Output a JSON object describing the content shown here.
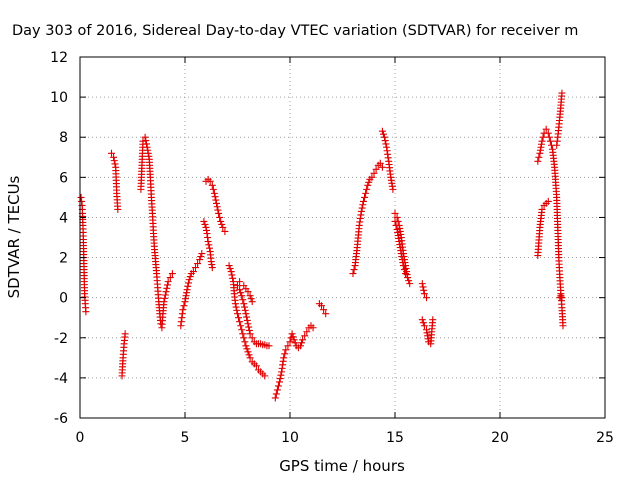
{
  "chart_data": {
    "type": "scatter",
    "title": "Day 303 of 2016, Sidereal Day-to-day VTEC variation (SDTVAR) for receiver m",
    "xlabel": "GPS time / hours",
    "ylabel": "SDTVAR / TECUs",
    "xlim": [
      0,
      25
    ],
    "ylim": [
      -6,
      12
    ],
    "xticks": [
      0,
      5,
      10,
      15,
      20,
      25
    ],
    "yticks": [
      -6,
      -4,
      -2,
      0,
      2,
      4,
      6,
      8,
      10,
      12
    ],
    "grid": true,
    "marker": "+",
    "marker_color": "#e00000",
    "series": [
      {
        "name": "SDTVAR",
        "segments": [
          [
            [
              0.05,
              5.0
            ],
            [
              0.1,
              4.6
            ],
            [
              0.12,
              4.2
            ],
            [
              0.14,
              3.6
            ],
            [
              0.16,
              2.9
            ],
            [
              0.18,
              2.0
            ],
            [
              0.2,
              1.1
            ],
            [
              0.22,
              0.2
            ],
            [
              0.25,
              -0.3
            ],
            [
              0.28,
              -0.7
            ]
          ],
          [
            [
              1.5,
              7.2
            ],
            [
              1.6,
              7.0
            ],
            [
              1.7,
              6.5
            ],
            [
              1.75,
              5.2
            ],
            [
              1.8,
              4.4
            ]
          ],
          [
            [
              2.0,
              -3.9
            ],
            [
              2.05,
              -3.0
            ],
            [
              2.1,
              -2.3
            ],
            [
              2.15,
              -1.8
            ]
          ],
          [
            [
              2.9,
              5.4
            ],
            [
              3.0,
              7.8
            ],
            [
              3.1,
              8.0
            ],
            [
              3.2,
              7.5
            ],
            [
              3.3,
              6.9
            ],
            [
              3.35,
              6.0
            ],
            [
              3.4,
              5.0
            ],
            [
              3.45,
              4.2
            ],
            [
              3.5,
              3.2
            ],
            [
              3.55,
              2.4
            ],
            [
              3.6,
              1.8
            ],
            [
              3.65,
              1.2
            ],
            [
              3.7,
              0.5
            ],
            [
              3.75,
              -0.2
            ],
            [
              3.8,
              -0.8
            ],
            [
              3.85,
              -1.3
            ],
            [
              3.9,
              -1.5
            ],
            [
              3.95,
              -0.8
            ],
            [
              4.0,
              -0.2
            ],
            [
              4.1,
              0.3
            ],
            [
              4.2,
              0.8
            ],
            [
              4.3,
              1.0
            ],
            [
              4.4,
              1.2
            ]
          ],
          [
            [
              4.8,
              -1.4
            ],
            [
              4.85,
              -1.0
            ],
            [
              4.9,
              -0.6
            ],
            [
              5.0,
              -0.2
            ],
            [
              5.1,
              0.4
            ],
            [
              5.2,
              0.9
            ],
            [
              5.3,
              1.2
            ],
            [
              5.4,
              1.3
            ],
            [
              5.5,
              1.5
            ],
            [
              5.6,
              1.7
            ],
            [
              5.7,
              1.9
            ],
            [
              5.8,
              2.2
            ]
          ],
          [
            [
              5.9,
              3.8
            ],
            [
              6.0,
              3.5
            ],
            [
              6.05,
              3.2
            ],
            [
              6.1,
              2.8
            ],
            [
              6.2,
              2.3
            ],
            [
              6.25,
              1.8
            ],
            [
              6.3,
              1.5
            ]
          ],
          [
            [
              6.0,
              5.8
            ],
            [
              6.1,
              5.9
            ],
            [
              6.2,
              5.8
            ],
            [
              6.3,
              5.6
            ],
            [
              6.4,
              5.2
            ],
            [
              6.5,
              4.7
            ],
            [
              6.6,
              4.2
            ],
            [
              6.7,
              3.8
            ],
            [
              6.8,
              3.5
            ],
            [
              6.9,
              3.3
            ]
          ],
          [
            [
              7.1,
              1.6
            ],
            [
              7.2,
              1.3
            ],
            [
              7.3,
              0.8
            ],
            [
              7.35,
              0.2
            ],
            [
              7.4,
              -0.3
            ],
            [
              7.5,
              -0.8
            ],
            [
              7.6,
              -1.2
            ],
            [
              7.7,
              -1.6
            ],
            [
              7.8,
              -2.0
            ],
            [
              7.9,
              -2.4
            ],
            [
              8.0,
              -2.7
            ],
            [
              8.1,
              -3.0
            ],
            [
              8.2,
              -3.2
            ],
            [
              8.3,
              -3.3
            ],
            [
              8.4,
              -3.4
            ],
            [
              8.5,
              -3.6
            ],
            [
              8.6,
              -3.7
            ],
            [
              8.7,
              -3.8
            ],
            [
              8.8,
              -3.9
            ]
          ],
          [
            [
              7.5,
              0.6
            ],
            [
              7.6,
              0.4
            ],
            [
              7.7,
              0.1
            ],
            [
              7.8,
              -0.3
            ],
            [
              7.9,
              -0.8
            ],
            [
              8.0,
              -1.3
            ],
            [
              8.1,
              -1.8
            ],
            [
              8.2,
              -2.0
            ],
            [
              8.3,
              -2.2
            ],
            [
              8.4,
              -2.3
            ],
            [
              8.5,
              -2.3
            ],
            [
              8.6,
              -2.3
            ],
            [
              8.7,
              -2.35
            ],
            [
              8.8,
              -2.35
            ],
            [
              8.9,
              -2.4
            ],
            [
              9.0,
              -2.4
            ]
          ],
          [
            [
              7.6,
              0.8
            ],
            [
              7.8,
              0.6
            ],
            [
              8.0,
              0.3
            ],
            [
              8.1,
              0.1
            ],
            [
              8.2,
              -0.2
            ]
          ],
          [
            [
              9.3,
              -5.0
            ],
            [
              9.4,
              -4.6
            ],
            [
              9.5,
              -4.2
            ],
            [
              9.6,
              -3.7
            ],
            [
              9.7,
              -3.0
            ],
            [
              9.8,
              -2.6
            ],
            [
              9.9,
              -2.4
            ],
            [
              10.0,
              -2.2
            ],
            [
              10.05,
              -2.0
            ],
            [
              10.1,
              -1.8
            ],
            [
              10.2,
              -2.1
            ],
            [
              10.3,
              -2.4
            ],
            [
              10.4,
              -2.5
            ],
            [
              10.5,
              -2.4
            ],
            [
              10.6,
              -2.1
            ],
            [
              10.7,
              -1.9
            ],
            [
              10.8,
              -1.7
            ],
            [
              10.9,
              -1.5
            ],
            [
              11.0,
              -1.4
            ],
            [
              11.1,
              -1.5
            ]
          ],
          [
            [
              11.4,
              -0.3
            ],
            [
              11.5,
              -0.4
            ],
            [
              11.6,
              -0.6
            ],
            [
              11.7,
              -0.8
            ]
          ],
          [
            [
              13.0,
              1.2
            ],
            [
              13.1,
              1.6
            ],
            [
              13.2,
              2.5
            ],
            [
              13.3,
              3.6
            ],
            [
              13.4,
              4.3
            ],
            [
              13.5,
              4.8
            ],
            [
              13.6,
              5.2
            ],
            [
              13.7,
              5.6
            ],
            [
              13.8,
              5.9
            ],
            [
              13.9,
              6.0
            ],
            [
              14.0,
              6.2
            ],
            [
              14.1,
              6.4
            ],
            [
              14.2,
              6.6
            ],
            [
              14.3,
              6.7
            ],
            [
              14.4,
              6.5
            ]
          ],
          [
            [
              14.4,
              8.3
            ],
            [
              14.5,
              8.0
            ],
            [
              14.6,
              7.5
            ],
            [
              14.7,
              6.8
            ],
            [
              14.8,
              6.0
            ],
            [
              14.9,
              5.4
            ]
          ],
          [
            [
              15.0,
              4.2
            ],
            [
              15.1,
              4.0
            ],
            [
              15.2,
              3.6
            ],
            [
              15.3,
              3.0
            ],
            [
              15.4,
              2.2
            ],
            [
              15.5,
              1.6
            ],
            [
              15.6,
              1.0
            ],
            [
              15.7,
              0.7
            ]
          ],
          [
            [
              15.0,
              3.8
            ],
            [
              15.1,
              3.4
            ],
            [
              15.2,
              2.8
            ],
            [
              15.3,
              2.2
            ],
            [
              15.4,
              1.6
            ],
            [
              15.5,
              1.2
            ]
          ],
          [
            [
              16.3,
              0.7
            ],
            [
              16.4,
              0.2
            ],
            [
              16.5,
              0.0
            ]
          ],
          [
            [
              16.3,
              -1.1
            ],
            [
              16.4,
              -1.4
            ],
            [
              16.5,
              -1.6
            ],
            [
              16.6,
              -2.2
            ],
            [
              16.7,
              -2.3
            ],
            [
              16.8,
              -1.1
            ]
          ],
          [
            [
              21.8,
              2.1
            ],
            [
              21.9,
              3.5
            ],
            [
              22.0,
              4.4
            ],
            [
              22.1,
              4.6
            ],
            [
              22.2,
              4.7
            ],
            [
              22.3,
              4.8
            ]
          ],
          [
            [
              21.8,
              6.8
            ],
            [
              21.9,
              7.2
            ],
            [
              22.0,
              7.8
            ],
            [
              22.1,
              8.2
            ],
            [
              22.2,
              8.4
            ],
            [
              22.3,
              8.2
            ],
            [
              22.4,
              7.8
            ],
            [
              22.5,
              7.4
            ],
            [
              22.6,
              6.5
            ],
            [
              22.7,
              5.0
            ],
            [
              22.75,
              3.5
            ],
            [
              22.8,
              2.0
            ],
            [
              22.85,
              1.0
            ],
            [
              22.9,
              0.2
            ],
            [
              22.95,
              -0.5
            ],
            [
              23.0,
              -1.4
            ]
          ],
          [
            [
              22.7,
              7.6
            ],
            [
              22.75,
              8.0
            ],
            [
              22.8,
              8.5
            ],
            [
              22.85,
              9.0
            ],
            [
              22.9,
              9.6
            ],
            [
              22.95,
              10.2
            ]
          ],
          [
            [
              22.85,
              0.0
            ],
            [
              22.9,
              0.1
            ],
            [
              22.95,
              0.0
            ]
          ]
        ]
      }
    ]
  }
}
